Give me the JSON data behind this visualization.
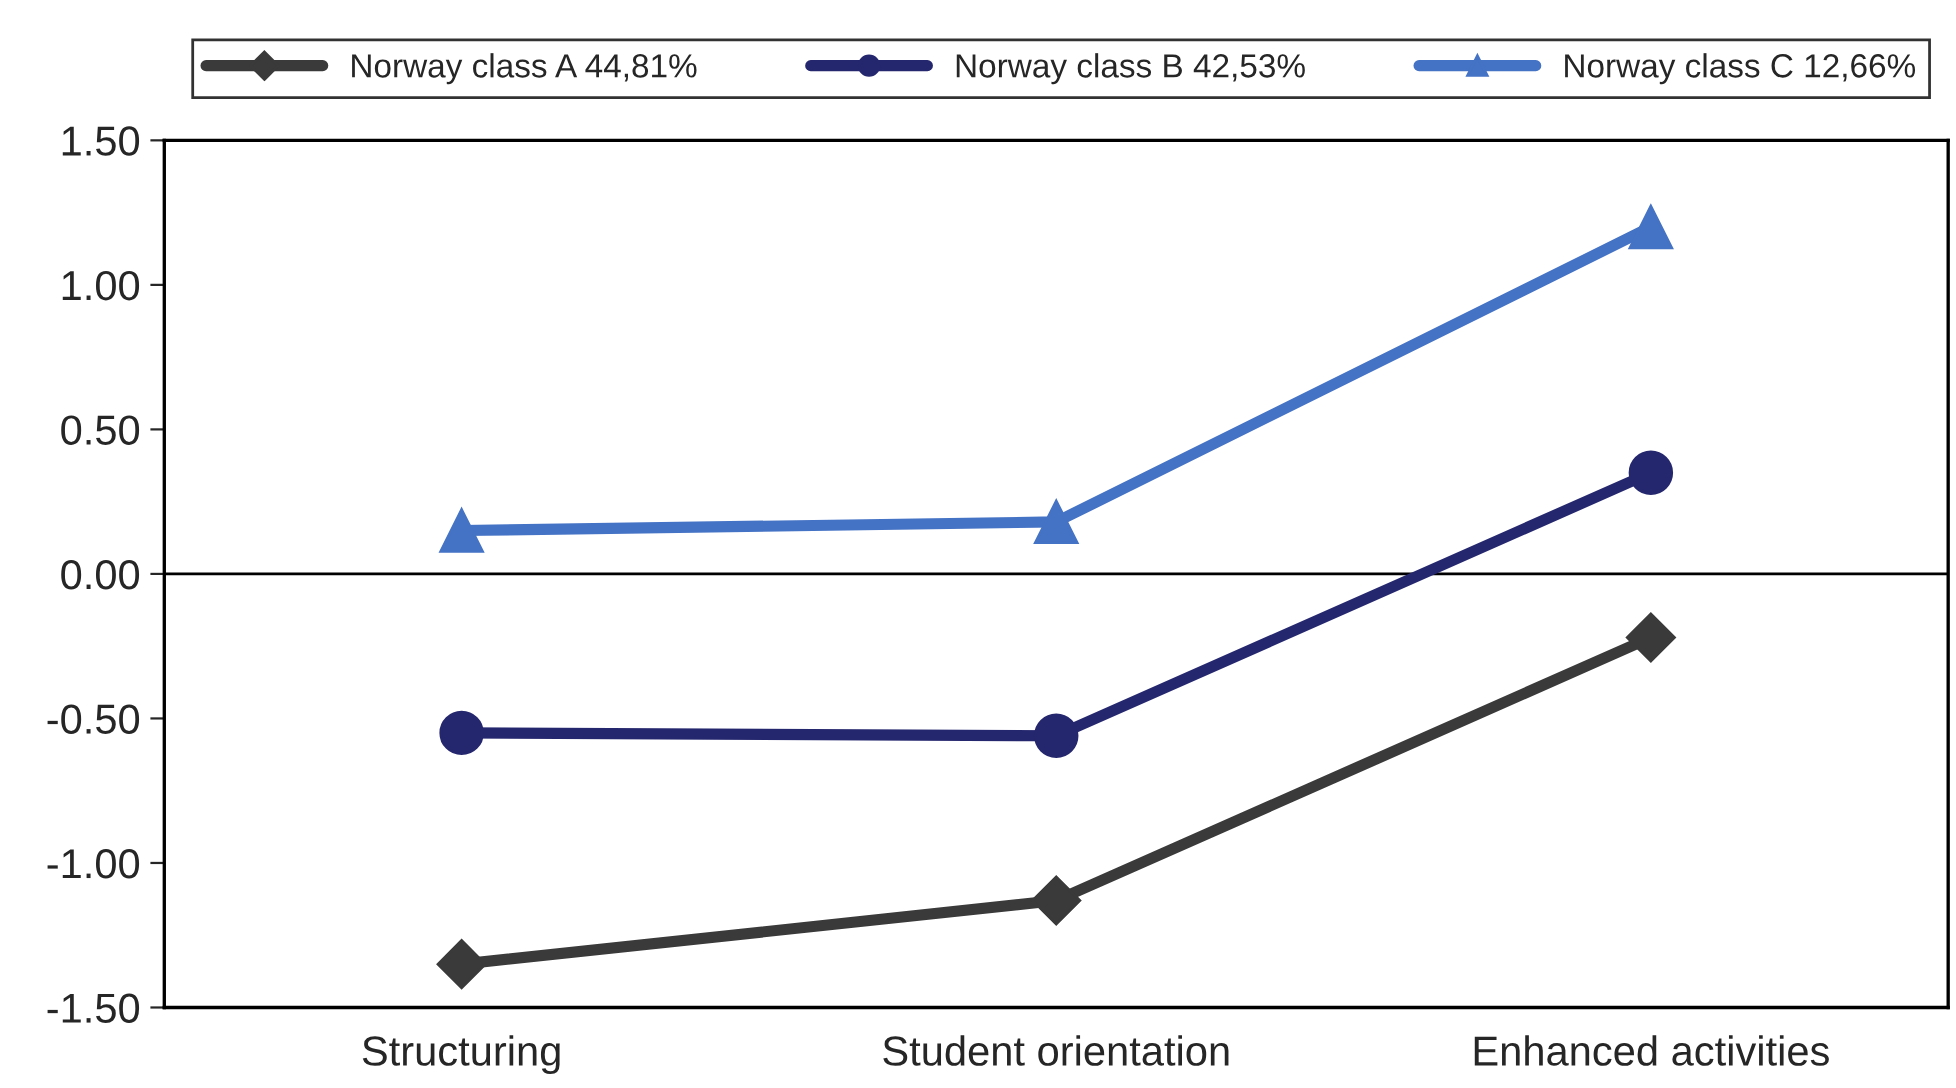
{
  "chart_data": {
    "type": "line",
    "categories": [
      "Structuring",
      "Student orientation",
      "Enhanced activities"
    ],
    "series": [
      {
        "name": "Norway class A 44,81%",
        "color": "#3a3a3a",
        "marker": "diamond",
        "values": [
          -1.35,
          -1.13,
          -0.22
        ]
      },
      {
        "name": "Norway class B 42,53%",
        "color": "#25276e",
        "marker": "circle",
        "values": [
          -0.55,
          -0.56,
          0.35
        ]
      },
      {
        "name": "Norway class C 12,66%",
        "color": "#4472c4",
        "marker": "triangle",
        "values": [
          0.15,
          0.18,
          1.2
        ]
      }
    ],
    "ylim": [
      -1.5,
      1.5
    ],
    "yticks": [
      {
        "value": -1.5,
        "label": "-1.50"
      },
      {
        "value": -1.0,
        "label": "-1.00"
      },
      {
        "value": -0.5,
        "label": "-0.50"
      },
      {
        "value": 0,
        "label": "0.00"
      },
      {
        "value": 0.5,
        "label": "0.50"
      },
      {
        "value": 1.0,
        "label": "1.00"
      },
      {
        "value": 1.5,
        "label": "1.50"
      }
    ],
    "ref_lines": [
      {
        "axis": "y",
        "value": 0,
        "color": "#000000"
      }
    ],
    "grid": false,
    "legend": "top",
    "line_style": "solid"
  }
}
